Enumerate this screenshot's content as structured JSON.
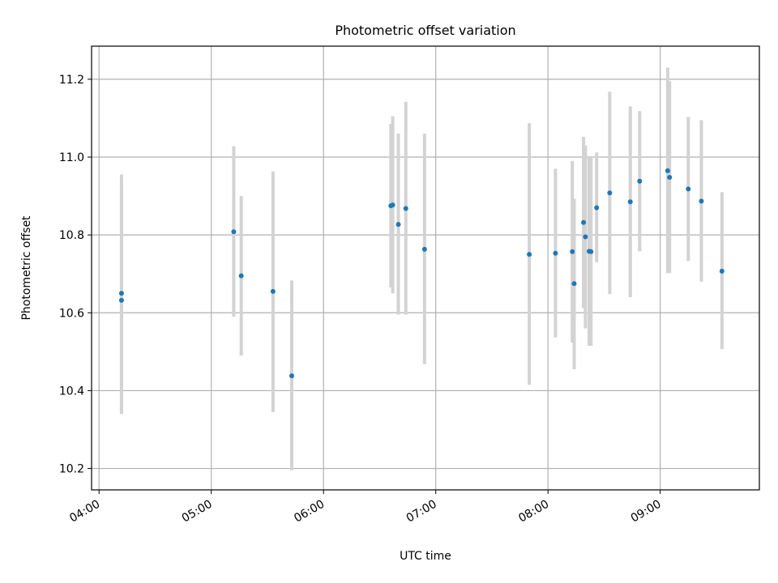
{
  "chart_data": {
    "type": "scatter",
    "title": "Photometric offset variation",
    "xlabel": "UTC time",
    "ylabel": "Photometric offset",
    "xlim": [
      "03:56",
      "09:53"
    ],
    "ylim": [
      10.145,
      11.285
    ],
    "x_ticks": [
      "04:00",
      "05:00",
      "06:00",
      "07:00",
      "08:00",
      "09:00"
    ],
    "y_ticks": [
      "10.2",
      "10.4",
      "10.6",
      "10.8",
      "11.0",
      "11.2"
    ],
    "grid": true,
    "point_color": "#1f77b4",
    "errorbar_color": "#d3d3d3",
    "points": [
      {
        "t": "04:12",
        "y": 10.65,
        "lo": 10.345,
        "hi": 10.955
      },
      {
        "t": "04:12",
        "y": 10.632,
        "lo": 10.34,
        "hi": 10.925
      },
      {
        "t": "05:12",
        "y": 10.808,
        "lo": 10.59,
        "hi": 11.028
      },
      {
        "t": "05:16",
        "y": 10.695,
        "lo": 10.49,
        "hi": 10.9
      },
      {
        "t": "05:33",
        "y": 10.655,
        "lo": 10.345,
        "hi": 10.963
      },
      {
        "t": "05:43",
        "y": 10.438,
        "lo": 10.195,
        "hi": 10.683
      },
      {
        "t": "06:36",
        "y": 10.875,
        "lo": 10.665,
        "hi": 11.085
      },
      {
        "t": "06:37",
        "y": 10.877,
        "lo": 10.65,
        "hi": 11.105
      },
      {
        "t": "06:40",
        "y": 10.827,
        "lo": 10.595,
        "hi": 11.06
      },
      {
        "t": "06:44",
        "y": 10.868,
        "lo": 10.595,
        "hi": 11.142
      },
      {
        "t": "06:54",
        "y": 10.763,
        "lo": 10.468,
        "hi": 11.06
      },
      {
        "t": "07:50",
        "y": 10.75,
        "lo": 10.415,
        "hi": 11.087
      },
      {
        "t": "08:04",
        "y": 10.753,
        "lo": 10.537,
        "hi": 10.97
      },
      {
        "t": "08:13",
        "y": 10.757,
        "lo": 10.523,
        "hi": 10.99
      },
      {
        "t": "08:14",
        "y": 10.675,
        "lo": 10.455,
        "hi": 10.893
      },
      {
        "t": "08:19",
        "y": 10.832,
        "lo": 10.612,
        "hi": 11.052
      },
      {
        "t": "08:20",
        "y": 10.795,
        "lo": 10.56,
        "hi": 11.03
      },
      {
        "t": "08:22",
        "y": 10.758,
        "lo": 10.515,
        "hi": 11.0
      },
      {
        "t": "08:23",
        "y": 10.757,
        "lo": 10.515,
        "hi": 11.0
      },
      {
        "t": "08:26",
        "y": 10.87,
        "lo": 10.73,
        "hi": 11.012
      },
      {
        "t": "08:33",
        "y": 10.908,
        "lo": 10.648,
        "hi": 11.168
      },
      {
        "t": "08:44",
        "y": 10.885,
        "lo": 10.64,
        "hi": 11.13
      },
      {
        "t": "08:49",
        "y": 10.938,
        "lo": 10.758,
        "hi": 11.118
      },
      {
        "t": "09:04",
        "y": 10.965,
        "lo": 10.702,
        "hi": 11.23
      },
      {
        "t": "09:05",
        "y": 10.948,
        "lo": 10.702,
        "hi": 11.195
      },
      {
        "t": "09:15",
        "y": 10.918,
        "lo": 10.733,
        "hi": 11.103
      },
      {
        "t": "09:22",
        "y": 10.887,
        "lo": 10.68,
        "hi": 11.095
      },
      {
        "t": "09:33",
        "y": 10.707,
        "lo": 10.507,
        "hi": 10.91
      }
    ]
  }
}
